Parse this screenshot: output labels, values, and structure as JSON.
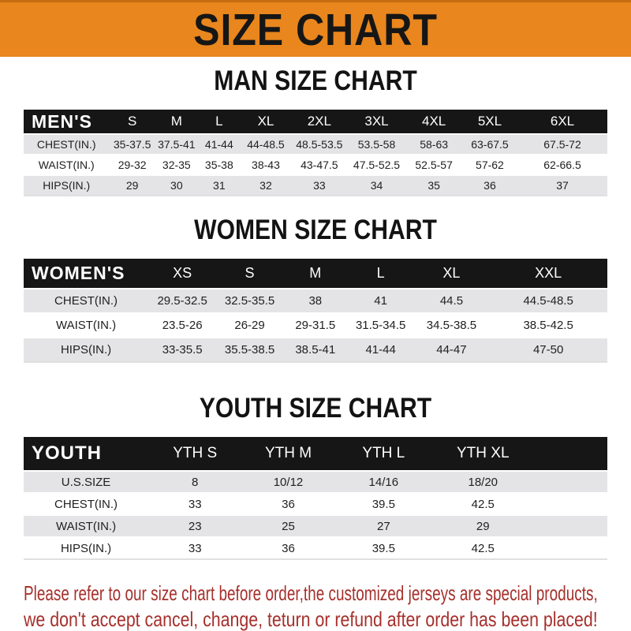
{
  "theme": {
    "accent_orange": "#E9861D",
    "bar_black": "#161616",
    "row_gray": "#E4E4E6",
    "footer_red": "#A6302C"
  },
  "banner": {
    "title": "SIZE CHART"
  },
  "sections": [
    {
      "title": "MAN SIZE CHART",
      "header_label": "MEN'S",
      "columns": [
        "S",
        "M",
        "L",
        "XL",
        "2XL",
        "3XL",
        "4XL",
        "5XL",
        "6XL"
      ],
      "rows": [
        {
          "label": "CHEST(IN.)",
          "values": [
            "35-37.5",
            "37.5-41",
            "41-44",
            "44-48.5",
            "48.5-53.5",
            "53.5-58",
            "58-63",
            "63-67.5",
            "67.5-72"
          ]
        },
        {
          "label": "WAIST(IN.)",
          "values": [
            "29-32",
            "32-35",
            "35-38",
            "38-43",
            "43-47.5",
            "47.5-52.5",
            "52.5-57",
            "57-62",
            "62-66.5"
          ]
        },
        {
          "label": "HIPS(IN.)",
          "values": [
            "29",
            "30",
            "31",
            "32",
            "33",
            "34",
            "35",
            "36",
            "37"
          ]
        }
      ]
    },
    {
      "title": "WOMEN SIZE CHART",
      "header_label": "WOMEN'S",
      "columns": [
        "XS",
        "S",
        "M",
        "L",
        "XL",
        "XXL"
      ],
      "rows": [
        {
          "label": "CHEST(IN.)",
          "values": [
            "29.5-32.5",
            "32.5-35.5",
            "38",
            "41",
            "44.5",
            "44.5-48.5"
          ]
        },
        {
          "label": "WAIST(IN.)",
          "values": [
            "23.5-26",
            "26-29",
            "29-31.5",
            "31.5-34.5",
            "34.5-38.5",
            "38.5-42.5"
          ]
        },
        {
          "label": "HIPS(IN.)",
          "values": [
            "33-35.5",
            "35.5-38.5",
            "38.5-41",
            "41-44",
            "44-47",
            "47-50"
          ]
        }
      ]
    },
    {
      "title": "YOUTH SIZE CHART",
      "header_label": "YOUTH",
      "columns": [
        "YTH S",
        "YTH M",
        "YTH L",
        "YTH XL",
        ""
      ],
      "rows": [
        {
          "label": "U.S.SIZE",
          "values": [
            "8",
            "10/12",
            "14/16",
            "18/20",
            ""
          ]
        },
        {
          "label": "CHEST(IN.)",
          "values": [
            "33",
            "36",
            "39.5",
            "42.5",
            ""
          ]
        },
        {
          "label": "WAIST(IN.)",
          "values": [
            "23",
            "25",
            "27",
            "29",
            ""
          ]
        },
        {
          "label": "HIPS(IN.)",
          "values": [
            "33",
            "36",
            "39.5",
            "42.5",
            ""
          ]
        }
      ]
    }
  ],
  "footer": {
    "line1": "Please refer to our size chart before order,the customized jerseys are special products,",
    "line2": "we don't accept cancel, change, teturn or refund after order has been placed!"
  }
}
